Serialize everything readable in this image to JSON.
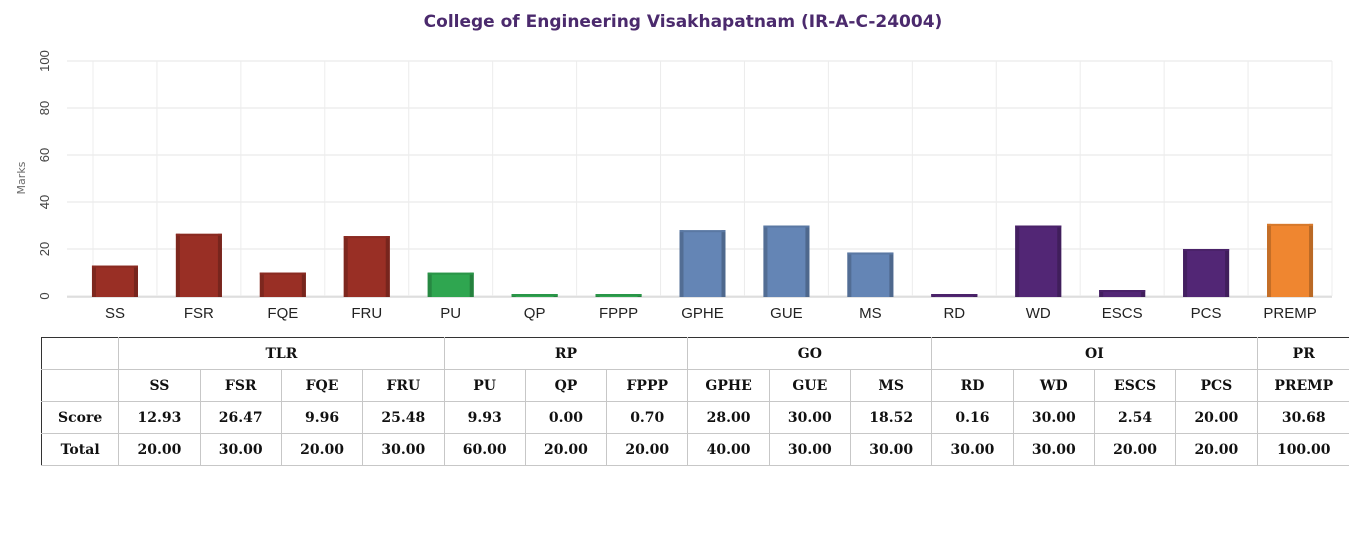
{
  "chart_data": {
    "type": "bar",
    "title": "College of Engineering Visakhapatnam (IR-A-C-24004)",
    "xlabel": "",
    "ylabel": "Marks",
    "ylim": [
      0,
      100
    ],
    "yticks": [
      0,
      20,
      40,
      60,
      80,
      100
    ],
    "grid": true,
    "categories": [
      "SS",
      "FSR",
      "FQE",
      "FRU",
      "PU",
      "QP",
      "FPPP",
      "GPHE",
      "GUE",
      "MS",
      "RD",
      "WD",
      "ESCS",
      "PCS",
      "PREMP"
    ],
    "values": [
      12.93,
      26.47,
      9.96,
      25.48,
      9.93,
      0.0,
      0.7,
      28.0,
      30.0,
      18.52,
      0.16,
      30.0,
      2.54,
      20.0,
      30.68
    ],
    "groups": [
      {
        "name": "TLR",
        "color": "#992f25",
        "categories": [
          "SS",
          "FSR",
          "FQE",
          "FRU"
        ]
      },
      {
        "name": "RP",
        "color": "#2fa650",
        "categories": [
          "PU",
          "QP",
          "FPPP"
        ]
      },
      {
        "name": "GO",
        "color": "#6485b5",
        "categories": [
          "GPHE",
          "GUE",
          "MS"
        ]
      },
      {
        "name": "OI",
        "color": "#522675",
        "categories": [
          "RD",
          "WD",
          "ESCS",
          "PCS"
        ]
      },
      {
        "name": "PR",
        "color": "#ef8630",
        "categories": [
          "PREMP"
        ]
      }
    ]
  },
  "table": {
    "row_labels": {
      "score": "Score",
      "total": "Total"
    },
    "groups": [
      {
        "name": "TLR",
        "span": 4
      },
      {
        "name": "RP",
        "span": 3
      },
      {
        "name": "GO",
        "span": 3
      },
      {
        "name": "OI",
        "span": 4
      },
      {
        "name": "PR",
        "span": 1
      }
    ],
    "params": [
      "SS",
      "FSR",
      "FQE",
      "FRU",
      "PU",
      "QP",
      "FPPP",
      "GPHE",
      "GUE",
      "MS",
      "RD",
      "WD",
      "ESCS",
      "PCS",
      "PREMP"
    ],
    "scores": [
      "12.93",
      "26.47",
      "9.96",
      "25.48",
      "9.93",
      "0.00",
      "0.70",
      "28.00",
      "30.00",
      "18.52",
      "0.16",
      "30.00",
      "2.54",
      "20.00",
      "30.68"
    ],
    "totals": [
      "20.00",
      "30.00",
      "20.00",
      "30.00",
      "60.00",
      "20.00",
      "20.00",
      "40.00",
      "30.00",
      "30.00",
      "30.00",
      "30.00",
      "20.00",
      "20.00",
      "100.00"
    ]
  }
}
